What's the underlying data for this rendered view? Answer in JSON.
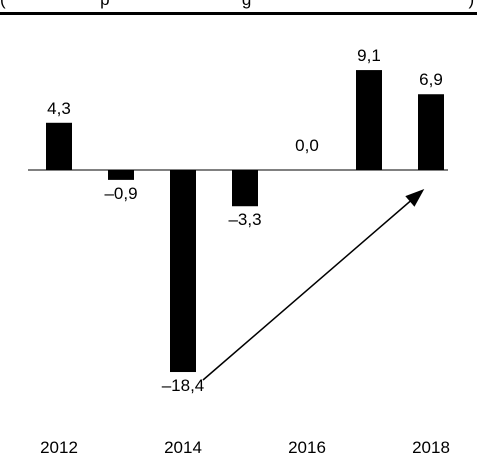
{
  "header": {
    "cropped_text": "(                    p                            g                                              )"
  },
  "chart_data": {
    "type": "bar",
    "categories": [
      "2012",
      "2013",
      "2014",
      "2015",
      "2016",
      "2017",
      "2018"
    ],
    "values": [
      4.3,
      -0.9,
      -18.4,
      -3.3,
      0.0,
      9.1,
      6.9
    ],
    "value_labels": [
      "4,3",
      "–0,9",
      "–18,4",
      "–3,3",
      "0,0",
      "9,1",
      "6,9"
    ],
    "x_tick_labels": [
      "2012",
      "",
      "2014",
      "",
      "2016",
      "",
      "2018"
    ],
    "ylim": [
      -19,
      10
    ],
    "bar_color": "#000000",
    "annotation": {
      "type": "arrow",
      "from_category": "2014",
      "to_category": "2018"
    },
    "grid": false
  }
}
